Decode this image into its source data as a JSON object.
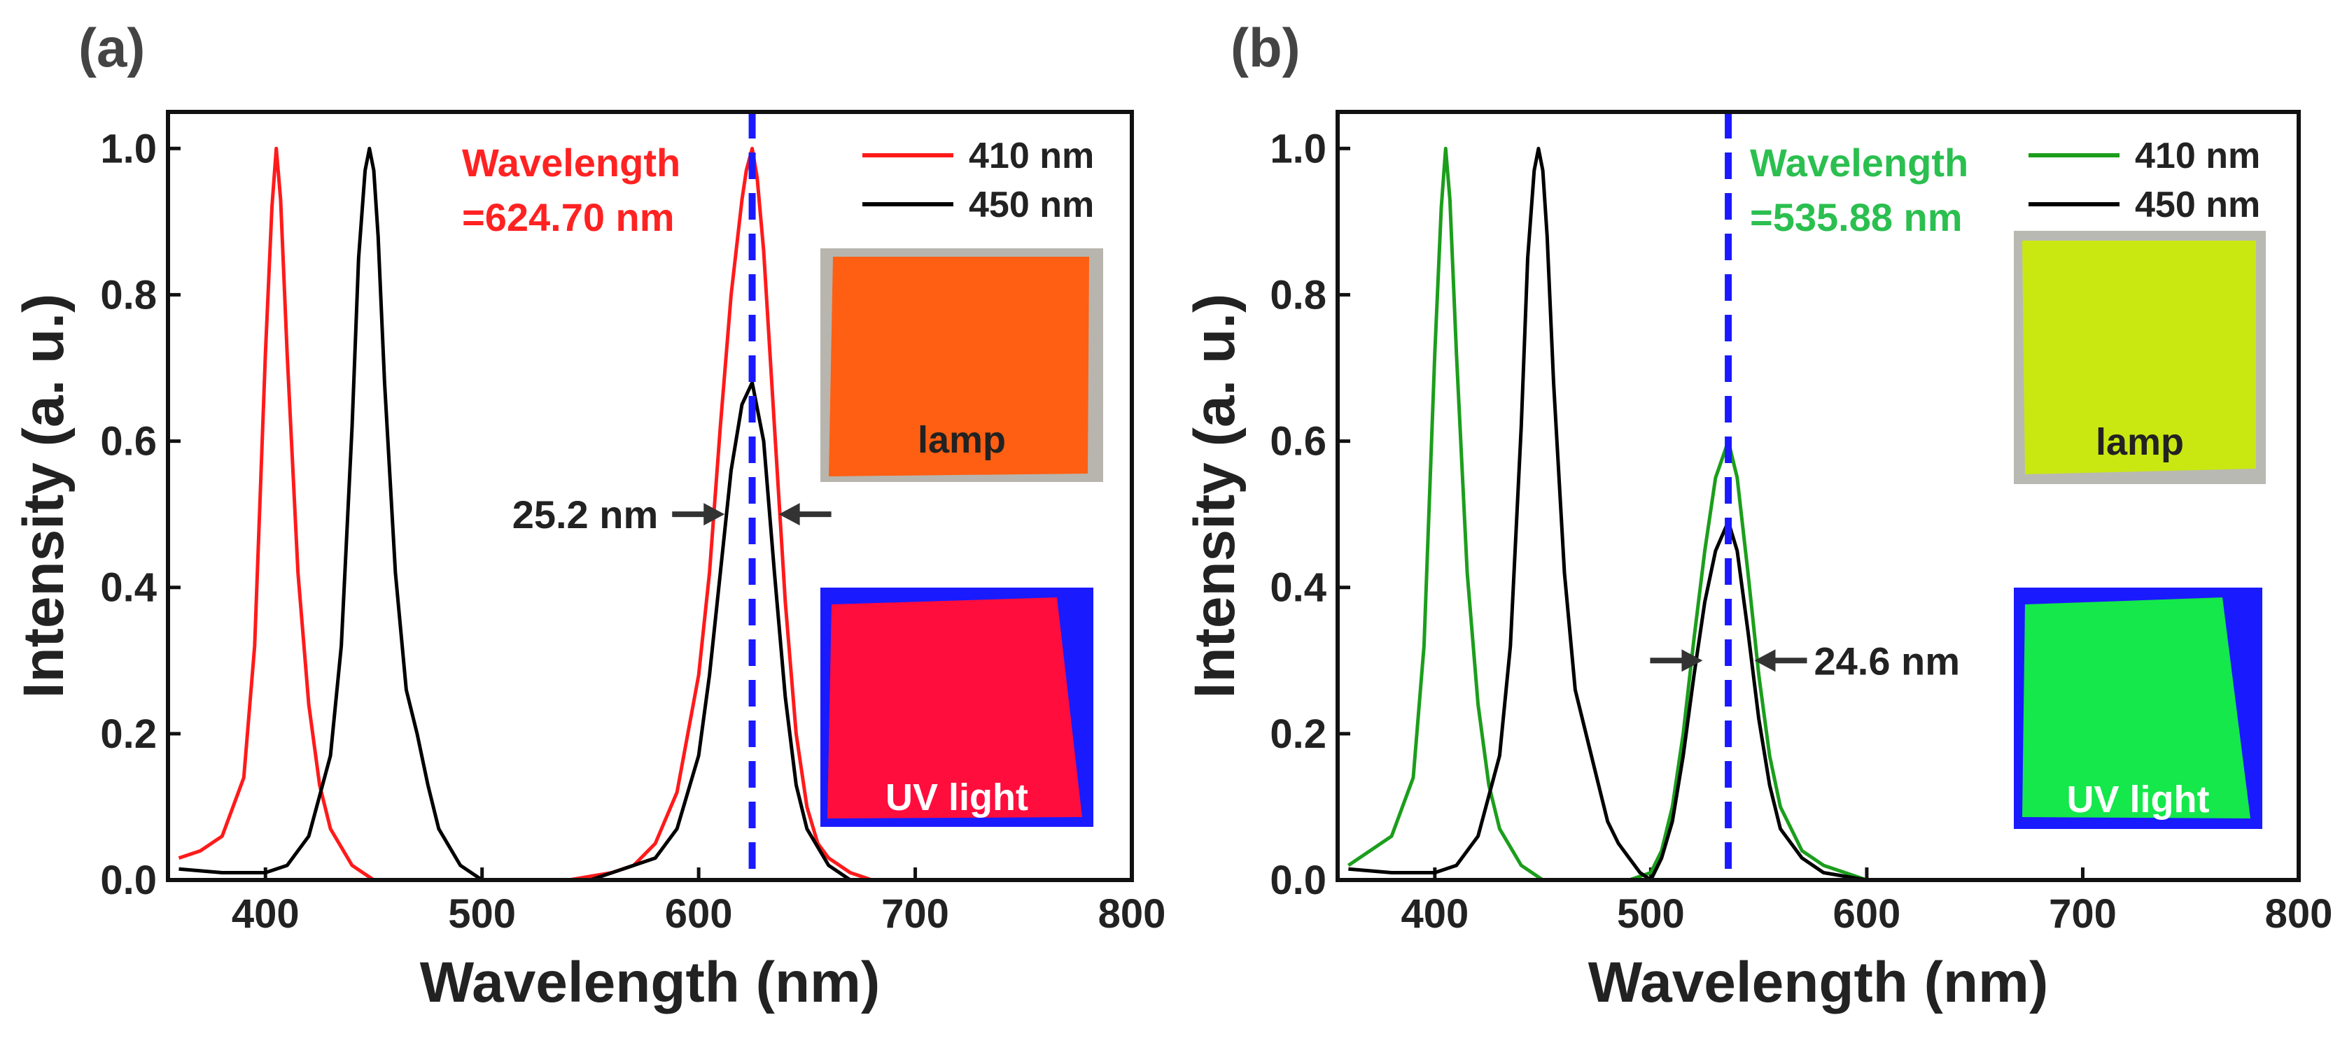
{
  "chart_data": [
    {
      "panel_label": "(a)",
      "type": "line",
      "xlabel": "Wavelength (nm)",
      "ylabel": "Intensity (a. u.)",
      "xlim": [
        355,
        800
      ],
      "ylim": [
        0,
        1.05
      ],
      "xticks": [
        400,
        500,
        600,
        700,
        800
      ],
      "yticks": [
        0.0,
        0.2,
        0.4,
        0.6,
        0.8,
        1.0
      ],
      "legend_position": "top-right",
      "series": [
        {
          "name": "410 nm",
          "color": "#ff1a1a",
          "x": [
            360,
            370,
            380,
            390,
            395,
            400,
            403,
            405,
            407,
            410,
            415,
            420,
            425,
            430,
            440,
            450,
            460,
            480,
            500,
            520,
            540,
            560,
            570,
            580,
            590,
            600,
            605,
            610,
            615,
            620,
            622,
            624.7,
            627,
            630,
            635,
            640,
            645,
            650,
            655,
            660,
            670,
            680,
            700,
            740
          ],
          "y": [
            0.03,
            0.04,
            0.06,
            0.14,
            0.32,
            0.72,
            0.92,
            1.0,
            0.93,
            0.72,
            0.42,
            0.24,
            0.13,
            0.07,
            0.02,
            0.0,
            0.0,
            0.0,
            0.0,
            0.0,
            0.0,
            0.01,
            0.02,
            0.05,
            0.12,
            0.28,
            0.42,
            0.62,
            0.8,
            0.93,
            0.97,
            1.0,
            0.96,
            0.86,
            0.62,
            0.38,
            0.2,
            0.1,
            0.05,
            0.03,
            0.01,
            0.0,
            0.0,
            0.0
          ]
        },
        {
          "name": "450 nm",
          "color": "#000000",
          "x": [
            360,
            380,
            400,
            410,
            420,
            430,
            435,
            440,
            443,
            446,
            448,
            450,
            452,
            455,
            460,
            465,
            470,
            475,
            480,
            490,
            500,
            520,
            550,
            580,
            590,
            600,
            605,
            610,
            615,
            620,
            624.7,
            630,
            635,
            640,
            645,
            650,
            660,
            670,
            700,
            740
          ],
          "y": [
            0.015,
            0.01,
            0.01,
            0.02,
            0.06,
            0.17,
            0.32,
            0.62,
            0.85,
            0.97,
            1.0,
            0.97,
            0.88,
            0.68,
            0.42,
            0.26,
            0.2,
            0.13,
            0.07,
            0.02,
            0.0,
            0.0,
            0.0,
            0.03,
            0.07,
            0.17,
            0.28,
            0.42,
            0.56,
            0.65,
            0.68,
            0.6,
            0.42,
            0.25,
            0.13,
            0.07,
            0.02,
            0.0,
            0.0,
            0.0
          ]
        }
      ],
      "annotations": {
        "peak_title": "Wavelength",
        "peak_value": "=624.70 nm",
        "peak_color": "#ff2222",
        "peak_wavelength": 624.7,
        "fwhm_text": "25.2 nm",
        "fwhm_y": 0.5,
        "fwhm_left_x": 612,
        "fwhm_right_x": 637,
        "marker_color": "#1a1aff"
      },
      "insets": {
        "lamp_label": "lamp",
        "uv_label": "UV light",
        "lamp_colors": {
          "background": "#b8b5ae",
          "sample": "#ff5f12"
        },
        "uv_colors": {
          "background": "#1a1aff",
          "sample": "#ff0d3d"
        }
      }
    },
    {
      "panel_label": "(b)",
      "type": "line",
      "xlabel": "Wavelength (nm)",
      "ylabel": "Intensity (a. u.)",
      "xlim": [
        355,
        800
      ],
      "ylim": [
        0,
        1.05
      ],
      "xticks": [
        400,
        500,
        600,
        700,
        800
      ],
      "yticks": [
        0.0,
        0.2,
        0.4,
        0.6,
        0.8,
        1.0
      ],
      "legend_position": "top-right",
      "series": [
        {
          "name": "410 nm",
          "color": "#1c9e1c",
          "x": [
            360,
            370,
            380,
            390,
            395,
            400,
            403,
            405,
            407,
            410,
            415,
            420,
            425,
            430,
            440,
            450,
            460,
            480,
            490,
            500,
            505,
            510,
            515,
            520,
            525,
            530,
            535.88,
            540,
            545,
            550,
            555,
            560,
            570,
            580,
            600,
            650,
            700,
            760
          ],
          "y": [
            0.02,
            0.04,
            0.06,
            0.14,
            0.32,
            0.72,
            0.92,
            1.0,
            0.93,
            0.72,
            0.42,
            0.24,
            0.13,
            0.07,
            0.02,
            0.0,
            0.0,
            0.0,
            0.0,
            0.01,
            0.04,
            0.1,
            0.2,
            0.33,
            0.45,
            0.55,
            0.6,
            0.55,
            0.42,
            0.28,
            0.17,
            0.1,
            0.04,
            0.02,
            0.0,
            0.0,
            0.0,
            0.0
          ]
        },
        {
          "name": "450 nm",
          "color": "#000000",
          "x": [
            360,
            380,
            400,
            410,
            420,
            430,
            435,
            440,
            443,
            446,
            448,
            450,
            452,
            455,
            460,
            465,
            470,
            475,
            480,
            485,
            490,
            495,
            500,
            505,
            510,
            515,
            520,
            525,
            530,
            535.88,
            540,
            545,
            550,
            555,
            560,
            570,
            580,
            600,
            700,
            760
          ],
          "y": [
            0.015,
            0.01,
            0.01,
            0.02,
            0.06,
            0.17,
            0.32,
            0.62,
            0.85,
            0.97,
            1.0,
            0.97,
            0.88,
            0.68,
            0.42,
            0.26,
            0.2,
            0.14,
            0.08,
            0.05,
            0.03,
            0.01,
            0.0,
            0.03,
            0.08,
            0.17,
            0.28,
            0.38,
            0.45,
            0.49,
            0.45,
            0.34,
            0.22,
            0.13,
            0.07,
            0.03,
            0.01,
            0.0,
            0.0,
            0.0
          ]
        }
      ],
      "annotations": {
        "peak_title": "Wavelength",
        "peak_value": "=535.88 nm",
        "peak_color": "#2bbf4f",
        "peak_wavelength": 535.88,
        "fwhm_text": "24.6 nm",
        "fwhm_y": 0.3,
        "fwhm_left_x": 524,
        "fwhm_right_x": 548,
        "marker_color": "#1a1aff"
      },
      "insets": {
        "lamp_label": "lamp",
        "uv_label": "UV light",
        "lamp_colors": {
          "background": "#b9b9b4",
          "sample": "#c9e812"
        },
        "uv_colors": {
          "background": "#1a1aff",
          "sample": "#14e84a"
        }
      }
    }
  ]
}
